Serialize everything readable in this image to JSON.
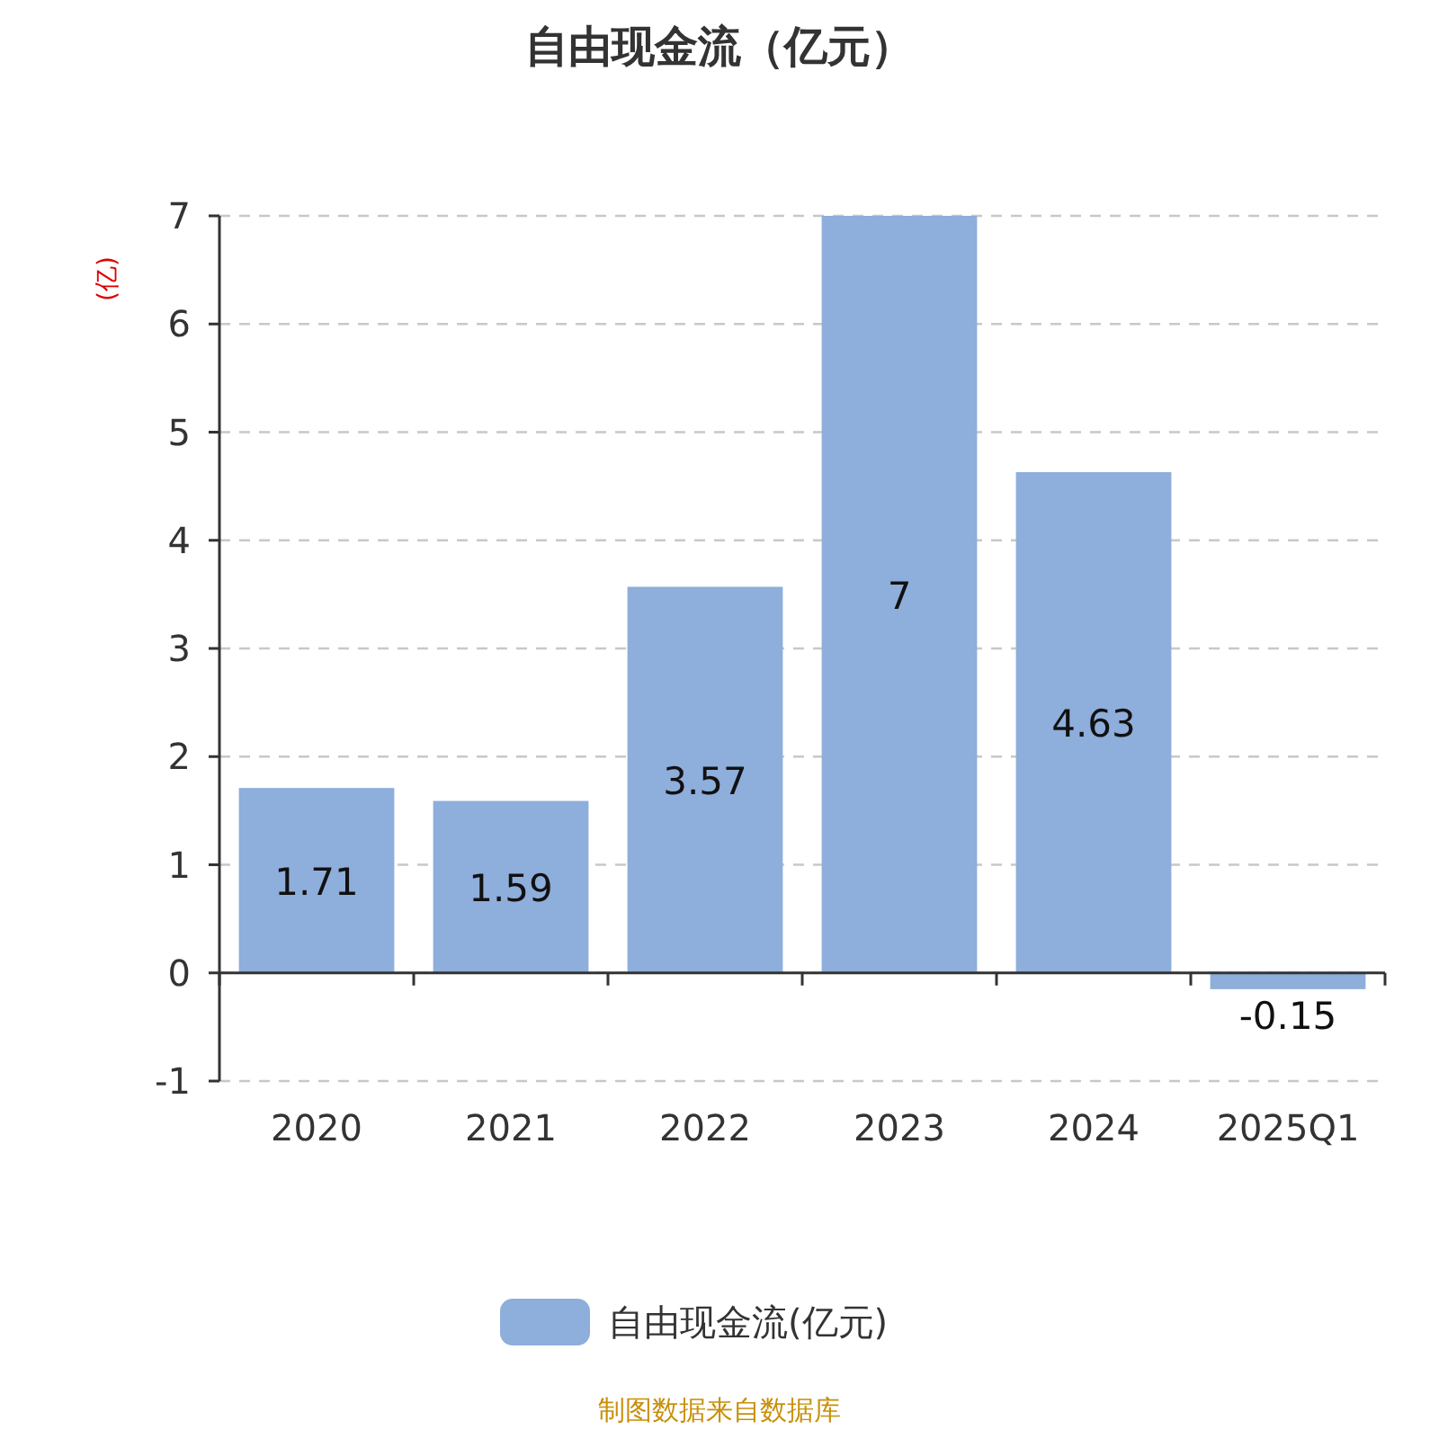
{
  "chart_data": {
    "type": "bar",
    "title": "自由现金流（亿元）",
    "ylabel": "(亿)",
    "categories": [
      "2020",
      "2021",
      "2022",
      "2023",
      "2024",
      "2025Q1"
    ],
    "series": [
      {
        "name": "自由现金流(亿元)",
        "color": "#8eaedb",
        "values": [
          1.71,
          1.59,
          3.57,
          7,
          4.63,
          -0.15
        ]
      }
    ],
    "ylim": [
      -1,
      7
    ],
    "yticks": [
      -1,
      0,
      1,
      2,
      3,
      4,
      5,
      6,
      7
    ],
    "grid": "y",
    "legend": "bottom",
    "data_labels": true,
    "annotations": [
      "制图数据来自数据库"
    ]
  }
}
